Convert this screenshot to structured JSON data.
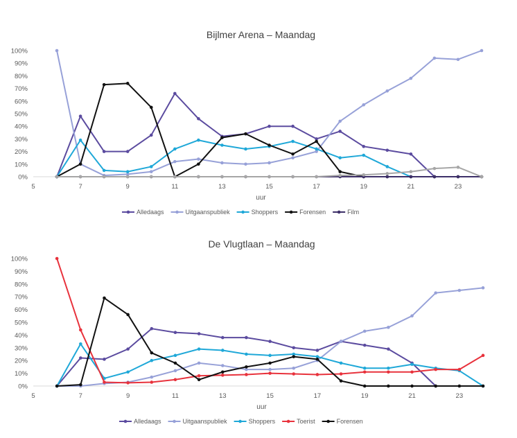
{
  "chart_data": [
    {
      "type": "line",
      "title": "Bijlmer Arena – Maandag",
      "xlabel": "uur",
      "ylabel": "",
      "xlim": [
        5,
        24
      ],
      "ylim": [
        0,
        1
      ],
      "x_ticks": [
        5,
        7,
        9,
        11,
        13,
        15,
        17,
        19,
        21,
        23
      ],
      "x_tick_labels": [
        "5",
        "7",
        "9",
        "11",
        "13",
        "15",
        "17",
        "19",
        "21",
        "23"
      ],
      "y_ticks": [
        0,
        0.1,
        0.2,
        0.3,
        0.4,
        0.5,
        0.6,
        0.7,
        0.8,
        0.9,
        1.0
      ],
      "y_tick_labels": [
        "0%",
        "10%",
        "20%",
        "30%",
        "40%",
        "50%",
        "60%",
        "70%",
        "80%",
        "90%",
        "100%"
      ],
      "grid": false,
      "legend_position": "bottom",
      "x": [
        6,
        7,
        8,
        9,
        10,
        11,
        12,
        13,
        14,
        15,
        16,
        17,
        18,
        19,
        20,
        21,
        22,
        23,
        24
      ],
      "series": [
        {
          "name": "Alledaags",
          "color": "#5b4b9f",
          "values": [
            0,
            0.48,
            0.2,
            0.2,
            0.33,
            0.66,
            0.46,
            0.32,
            0.34,
            0.4,
            0.4,
            0.3,
            0.36,
            0.24,
            0.21,
            0.18,
            0,
            null,
            null
          ]
        },
        {
          "name": "Uitgaanspubliek",
          "color": "#97a1d8",
          "values": [
            1.0,
            0.1,
            0.01,
            0.02,
            0.04,
            0.12,
            0.14,
            0.11,
            0.1,
            0.11,
            0.15,
            0.2,
            0.44,
            0.57,
            0.68,
            0.78,
            0.94,
            0.93,
            1.0
          ]
        },
        {
          "name": "Shoppers",
          "color": "#1fa8d8",
          "values": [
            0,
            0.29,
            0.05,
            0.04,
            0.08,
            0.22,
            0.29,
            0.25,
            0.22,
            0.24,
            0.28,
            0.22,
            0.15,
            0.17,
            0.08,
            0,
            null,
            null,
            null
          ]
        },
        {
          "name": "Forensen",
          "color": "#111111",
          "values": [
            0,
            0.1,
            0.73,
            0.74,
            0.55,
            0,
            0.1,
            0.31,
            0.34,
            0.25,
            0.18,
            0.28,
            0.04,
            0,
            0,
            0,
            0,
            0,
            0
          ]
        },
        {
          "name": "Film",
          "color": "#3d2f68",
          "values": [
            0,
            0,
            0,
            0,
            0,
            0,
            0,
            0,
            0,
            0,
            0,
            0,
            0,
            0,
            0,
            0,
            0,
            0,
            0
          ]
        },
        {
          "name": "",
          "color": "#a6a6a6",
          "values": [
            0,
            0,
            0,
            0,
            0,
            0,
            0,
            0,
            0,
            0,
            0,
            0,
            0.01,
            0.015,
            0.025,
            0.04,
            0.065,
            0.075,
            0
          ]
        }
      ]
    },
    {
      "type": "line",
      "title": "De Vlugtlaan – Maandag",
      "xlabel": "uur",
      "ylabel": "",
      "xlim": [
        5,
        24
      ],
      "ylim": [
        0,
        1
      ],
      "x_ticks": [
        5,
        7,
        9,
        11,
        13,
        15,
        17,
        19,
        21,
        23
      ],
      "x_tick_labels": [
        "5",
        "7",
        "9",
        "11",
        "13",
        "15",
        "17",
        "19",
        "21",
        "23"
      ],
      "y_ticks": [
        0,
        0.1,
        0.2,
        0.3,
        0.4,
        0.5,
        0.6,
        0.7,
        0.8,
        0.9,
        1.0
      ],
      "y_tick_labels": [
        "0%",
        "10%",
        "20%",
        "30%",
        "40%",
        "50%",
        "60%",
        "70%",
        "80%",
        "90%",
        "100%"
      ],
      "grid": false,
      "legend_position": "bottom",
      "x": [
        6,
        7,
        8,
        9,
        10,
        11,
        12,
        13,
        14,
        15,
        16,
        17,
        18,
        19,
        20,
        21,
        22,
        23,
        24
      ],
      "series": [
        {
          "name": "Alledaags",
          "color": "#5b4b9f",
          "values": [
            0,
            0.22,
            0.21,
            0.29,
            0.45,
            0.42,
            0.41,
            0.38,
            0.38,
            0.35,
            0.3,
            0.28,
            0.35,
            0.32,
            0.29,
            0.18,
            0,
            null,
            null
          ]
        },
        {
          "name": "Uitgaanspubliek",
          "color": "#97a1d8",
          "values": [
            0,
            0,
            0.02,
            0.03,
            0.07,
            0.12,
            0.18,
            0.16,
            0.13,
            0.13,
            0.14,
            0.2,
            0.35,
            0.43,
            0.46,
            0.55,
            0.73,
            0.75,
            0.77
          ]
        },
        {
          "name": "Shoppers",
          "color": "#1fa8d8",
          "values": [
            0,
            0.33,
            0.06,
            0.11,
            0.2,
            0.24,
            0.29,
            0.28,
            0.25,
            0.24,
            0.25,
            0.23,
            0.18,
            0.14,
            0.14,
            0.17,
            0.14,
            0.12,
            0
          ]
        },
        {
          "name": "Toerist",
          "color": "#e8323c",
          "values": [
            1.0,
            0.44,
            0.03,
            0.025,
            0.03,
            0.05,
            0.08,
            0.085,
            0.09,
            0.1,
            0.095,
            0.09,
            0.095,
            0.11,
            0.11,
            0.11,
            0.13,
            0.13,
            0.24
          ]
        },
        {
          "name": "Forensen",
          "color": "#111111",
          "values": [
            0,
            0.01,
            0.69,
            0.56,
            0.26,
            0.18,
            0.05,
            0.11,
            0.15,
            0.18,
            0.23,
            0.21,
            0.04,
            0,
            0,
            0,
            0,
            0,
            0
          ]
        }
      ]
    }
  ]
}
